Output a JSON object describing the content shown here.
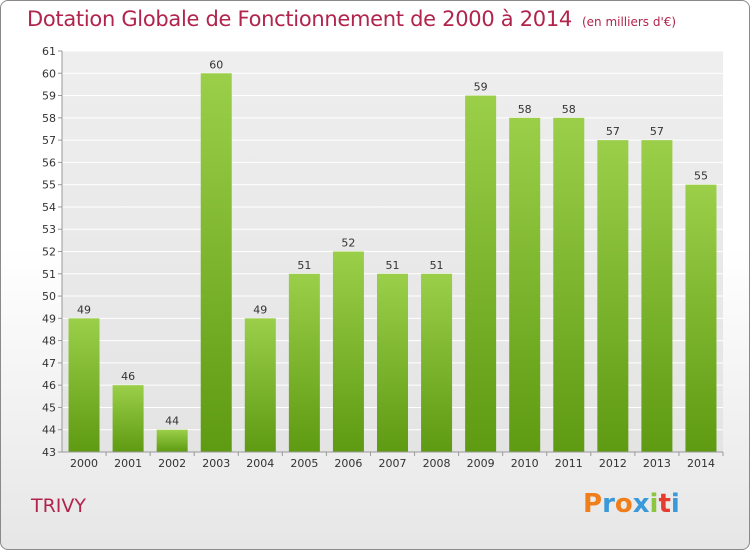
{
  "header": {
    "title": "Dotation Globale de Fonctionnement de 2000 à 2014",
    "subtitle": "(en milliers d'€)"
  },
  "footer": {
    "place": "TRIVY",
    "logo_text": "Proxiti",
    "logo_colors": [
      "#f07e1b",
      "#3a9ad9",
      "#f07e1b",
      "#3a9ad9",
      "#8cc63f",
      "#e63c2f",
      "#3a9ad9"
    ]
  },
  "chart_data": {
    "type": "bar",
    "categories": [
      "2000",
      "2001",
      "2002",
      "2003",
      "2004",
      "2005",
      "2006",
      "2007",
      "2008",
      "2009",
      "2010",
      "2011",
      "2012",
      "2013",
      "2014"
    ],
    "values": [
      49,
      46,
      44,
      60,
      49,
      51,
      52,
      51,
      51,
      59,
      58,
      58,
      57,
      57,
      55
    ],
    "ylim": [
      43,
      61
    ],
    "yticks": [
      43,
      44,
      45,
      46,
      47,
      48,
      49,
      50,
      51,
      52,
      53,
      54,
      55,
      56,
      57,
      58,
      59,
      60,
      61
    ],
    "bar_color_top": "#9bcf4a",
    "bar_color_bottom": "#5e9a12",
    "grid": true,
    "legend": false
  }
}
